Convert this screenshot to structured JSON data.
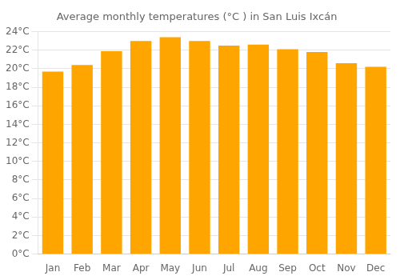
{
  "chart_data": {
    "type": "bar",
    "title": "Average monthly temperatures (°C ) in San Luis Ixcán",
    "categories": [
      "Jan",
      "Feb",
      "Mar",
      "Apr",
      "May",
      "Jun",
      "Jul",
      "Aug",
      "Sep",
      "Oct",
      "Nov",
      "Dec"
    ],
    "values": [
      19.7,
      20.4,
      21.9,
      23.0,
      23.4,
      23.0,
      22.5,
      22.6,
      22.1,
      21.8,
      20.6,
      20.2
    ],
    "color": "#FFA500",
    "ylim": [
      0,
      24
    ],
    "yticks": [
      {
        "value": 0,
        "label": "0°C"
      },
      {
        "value": 2,
        "label": "2°C"
      },
      {
        "value": 4,
        "label": "4°C"
      },
      {
        "value": 6,
        "label": "6°C"
      },
      {
        "value": 8,
        "label": "8°C"
      },
      {
        "value": 10,
        "label": "10°C"
      },
      {
        "value": 12,
        "label": "12°C"
      },
      {
        "value": 14,
        "label": "14°C"
      },
      {
        "value": 16,
        "label": "16°C"
      },
      {
        "value": 18,
        "label": "18°C"
      },
      {
        "value": 20,
        "label": "20°C"
      },
      {
        "value": 22,
        "label": "22°C"
      },
      {
        "value": 24,
        "label": "24°C"
      }
    ],
    "grid": true
  }
}
